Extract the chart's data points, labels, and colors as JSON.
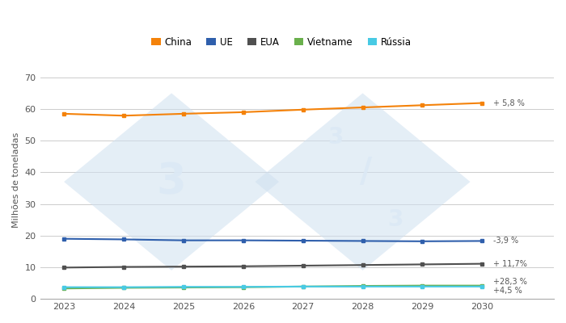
{
  "years": [
    2023,
    2024,
    2025,
    2026,
    2027,
    2028,
    2029,
    2030
  ],
  "series": {
    "China": [
      58.5,
      57.9,
      58.5,
      59.0,
      59.8,
      60.5,
      61.2,
      61.9
    ],
    "UE": [
      19.0,
      18.8,
      18.5,
      18.5,
      18.4,
      18.3,
      18.2,
      18.3
    ],
    "EUA": [
      9.9,
      10.1,
      10.2,
      10.3,
      10.5,
      10.7,
      10.9,
      11.1
    ],
    "Vietname": [
      3.3,
      3.5,
      3.6,
      3.7,
      3.9,
      4.1,
      4.2,
      4.2
    ],
    "Rússia": [
      3.7,
      3.7,
      3.8,
      3.8,
      3.9,
      3.9,
      3.9,
      3.9
    ]
  },
  "colors": {
    "China": "#f4820a",
    "UE": "#2f5fac",
    "EUA": "#505050",
    "Vietname": "#6ab04c",
    "Rússia": "#48cae4"
  },
  "annotations": {
    "China": "+ 5,8 %",
    "UE": "-3,9 %",
    "EUA": "+ 11,7%",
    "Vietname": "+28,3 %",
    "Rússia": "+4,5 %"
  },
  "ann_offsets": {
    "China": 0.0,
    "UE": 0.0,
    "EUA": 0.0,
    "Vietname": 1.2,
    "Rússia": -1.2
  },
  "ylabel": "Milhões de toneladas",
  "ylim": [
    0,
    75
  ],
  "yticks": [
    0,
    10,
    20,
    30,
    40,
    50,
    60,
    70
  ],
  "xlim": [
    2022.6,
    2031.2
  ],
  "background_color": "#ffffff",
  "watermark_color": "#cfe0f0",
  "watermark_text_color": "#dce9f5",
  "legend_order": [
    "China",
    "UE",
    "EUA",
    "Vietname",
    "Rússia"
  ]
}
